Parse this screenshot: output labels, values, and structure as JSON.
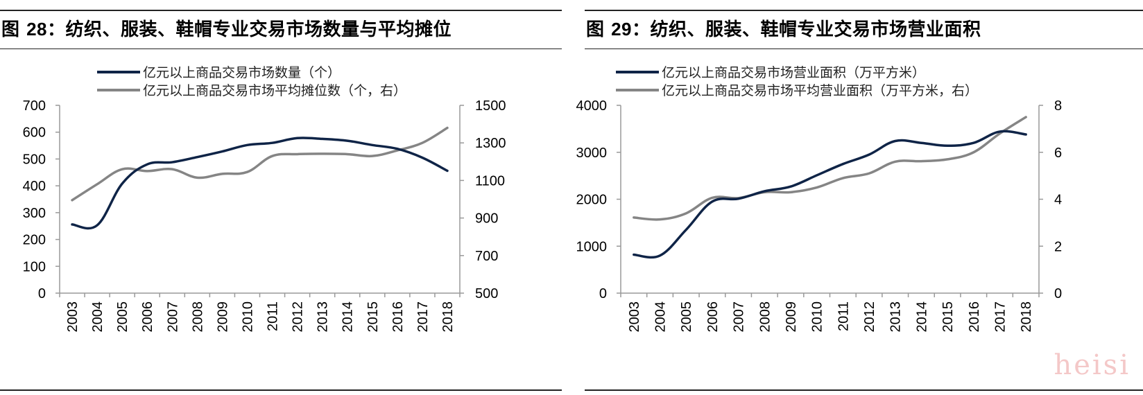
{
  "watermark": "heisi",
  "colors": {
    "series_dark": "#0f2447",
    "series_gray": "#858585"
  },
  "chart_data": [
    {
      "type": "line",
      "fig_prefix": "图 ",
      "fig_number": "28",
      "title": "：纺织、服装、鞋帽专业交易市场数量与平均摊位",
      "x": [
        "2003",
        "2004",
        "2005",
        "2006",
        "2007",
        "2008",
        "2009",
        "2010",
        "2011",
        "2012",
        "2013",
        "2014",
        "2015",
        "2016",
        "2017",
        "2018"
      ],
      "y_left": {
        "lim": [
          0,
          700
        ],
        "ticks": [
          "0",
          "100",
          "200",
          "300",
          "400",
          "500",
          "600",
          "700"
        ]
      },
      "y_right": {
        "lim": [
          500,
          1500
        ],
        "ticks": [
          "500",
          "700",
          "900",
          "1100",
          "1300",
          "1500"
        ]
      },
      "series": [
        {
          "name": "亿元以上商品交易市场数量（个）",
          "axis": "left",
          "color": "#0f2447",
          "values": [
            256,
            253,
            408,
            480,
            488,
            507,
            528,
            552,
            560,
            578,
            575,
            568,
            552,
            538,
            505,
            456
          ]
        },
        {
          "name": "亿元以上商品交易市场平均摊位数（个，右）",
          "axis": "right",
          "color": "#858585",
          "values": [
            995,
            1080,
            1160,
            1150,
            1160,
            1115,
            1135,
            1145,
            1230,
            1240,
            1242,
            1240,
            1230,
            1260,
            1300,
            1380
          ]
        }
      ]
    },
    {
      "type": "line",
      "fig_prefix": "图 ",
      "fig_number": "29",
      "title": "：纺织、服装、鞋帽专业交易市场营业面积",
      "x": [
        "2003",
        "2004",
        "2005",
        "2006",
        "2007",
        "2008",
        "2009",
        "2010",
        "2011",
        "2012",
        "2013",
        "2014",
        "2015",
        "2016",
        "2017",
        "2018"
      ],
      "y_left": {
        "lim": [
          0,
          4000
        ],
        "ticks": [
          "0",
          "1000",
          "2000",
          "3000",
          "4000"
        ]
      },
      "y_right": {
        "lim": [
          0,
          8
        ],
        "ticks": [
          "0",
          "2",
          "4",
          "6",
          "8"
        ]
      },
      "series": [
        {
          "name": "亿元以上商品交易市场营业面积（万平方米）",
          "axis": "left",
          "color": "#0f2447",
          "values": [
            820,
            800,
            1350,
            1950,
            2010,
            2170,
            2270,
            2510,
            2750,
            2950,
            3240,
            3200,
            3140,
            3200,
            3440,
            3380
          ]
        },
        {
          "name": "亿元以上商品交易市场平均营业面积（万平方米，右）",
          "axis": "right",
          "color": "#858585",
          "values": [
            3.22,
            3.14,
            3.4,
            4.06,
            4.05,
            4.3,
            4.3,
            4.5,
            4.9,
            5.1,
            5.6,
            5.62,
            5.7,
            6.0,
            6.8,
            7.5
          ]
        }
      ]
    }
  ]
}
